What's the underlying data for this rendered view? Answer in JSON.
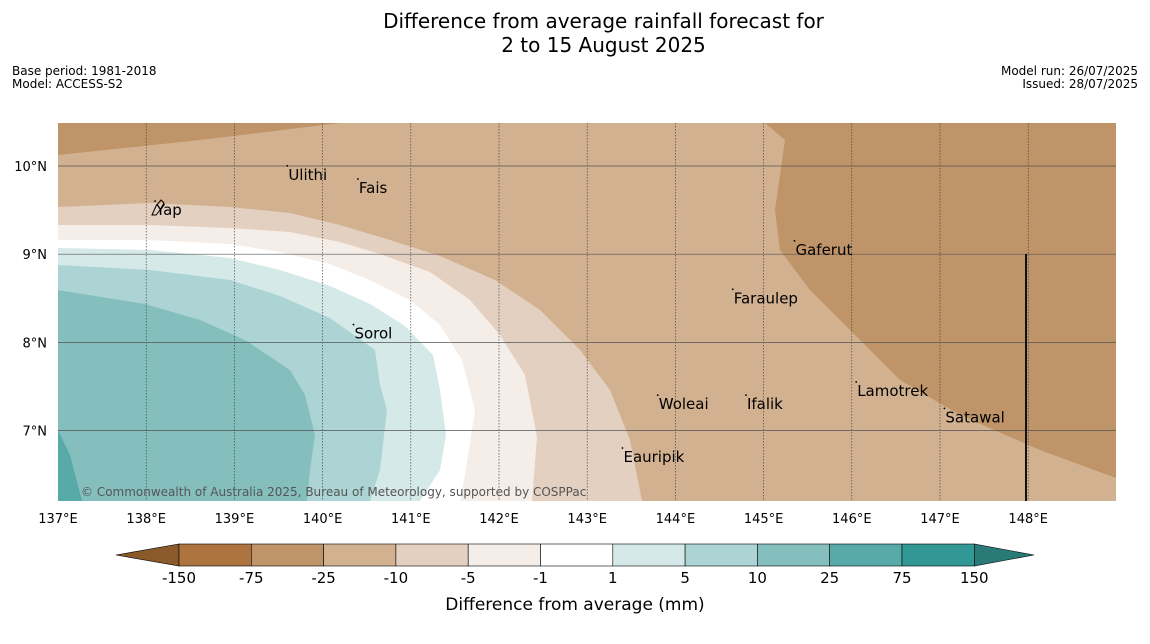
{
  "title_line1": "Difference from average rainfall forecast for",
  "title_line2": "2 to 15 August 2025",
  "base_period": "Base period: 1981-2018",
  "model": "Model: ACCESS-S2",
  "model_run": "Model run: 26/07/2025",
  "issued": "Issued: 28/07/2025",
  "copyright": "© Commonwealth of Australia 2025, Bureau of Meteorology, supported by COSPPac",
  "map": {
    "lon_range": [
      137,
      149
    ],
    "lat_range": [
      6.3,
      10.5
    ],
    "lon_ticks": [
      "137°E",
      "138°E",
      "139°E",
      "140°E",
      "141°E",
      "142°E",
      "143°E",
      "144°E",
      "145°E",
      "146°E",
      "147°E",
      "148°E"
    ],
    "lat_ticks": [
      "10°N",
      "9°N",
      "8°N",
      "7°N"
    ],
    "places": [
      {
        "name": "Yap",
        "lon": 138.1,
        "lat": 9.5
      },
      {
        "name": "Ulithi",
        "lon": 139.6,
        "lat": 9.9
      },
      {
        "name": "Fais",
        "lon": 140.4,
        "lat": 9.75
      },
      {
        "name": "Gaferut",
        "lon": 145.35,
        "lat": 9.05
      },
      {
        "name": "Faraulep",
        "lon": 144.65,
        "lat": 8.5
      },
      {
        "name": "Sorol",
        "lon": 140.35,
        "lat": 8.1
      },
      {
        "name": "Woleai",
        "lon": 143.8,
        "lat": 7.3
      },
      {
        "name": "Ifalik",
        "lon": 144.8,
        "lat": 7.3
      },
      {
        "name": "Lamotrek",
        "lon": 146.05,
        "lat": 7.45
      },
      {
        "name": "Satawal",
        "lon": 147.05,
        "lat": 7.15
      },
      {
        "name": "Eauripik",
        "lon": 143.4,
        "lat": 6.7
      }
    ]
  },
  "colorbar": {
    "title": "Difference from average (mm)",
    "labels": [
      "-150",
      "-75",
      "-25",
      "-10",
      "-5",
      "-1",
      "1",
      "5",
      "10",
      "25",
      "75",
      "150"
    ],
    "colors": [
      "#8b5a2b",
      "#ad743f",
      "#bf9468",
      "#d2b190",
      "#e4d0c0",
      "#f4ede8",
      "#ffffff",
      "#d4e9e8",
      "#acd4d4",
      "#84bfbe",
      "#58aaa9",
      "#329896",
      "#2a7a78"
    ]
  }
}
